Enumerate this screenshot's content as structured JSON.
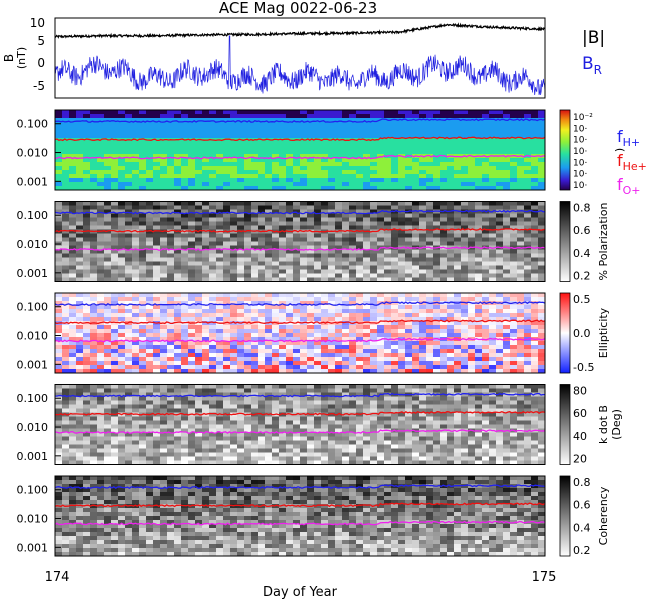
{
  "title": "ACE Mag 0022-06-23",
  "xlabel": "Day of Year",
  "x_ticks": [
    "174",
    "175"
  ],
  "colors": {
    "B": "#000000",
    "BR": "#1f1fe0",
    "fH": "#2222ee",
    "fHe": "#ee1111",
    "fO": "#ee22ee"
  },
  "legend_top": {
    "B": "|B|",
    "BR_main": "B",
    "BR_sub": "R"
  },
  "legend_freq": [
    {
      "main": "f",
      "sub": "H+",
      "color": "#2222ee"
    },
    {
      "main": "f",
      "sub": "He+",
      "color": "#ee1111"
    },
    {
      "main": "f",
      "sub": "O+",
      "color": "#ee22ee"
    }
  ],
  "chart_data": [
    {
      "type": "line",
      "panel": "magnetic field",
      "ylabel": "B (nT)",
      "ylabel_main": "B",
      "ylabel_unit": "(nT)",
      "ylim": [
        -8,
        10
      ],
      "y_ticks": [
        "10",
        "5",
        "0",
        "-5"
      ],
      "x": [
        174.0,
        174.1,
        174.2,
        174.3,
        174.4,
        174.5,
        174.6,
        174.7,
        174.8,
        174.9,
        175.0
      ],
      "series": [
        {
          "name": "|B|",
          "values": [
            5.8,
            6.0,
            6.0,
            6.2,
            6.3,
            6.5,
            6.6,
            6.8,
            8.5,
            7.9,
            7.5
          ]
        },
        {
          "name": "B_R",
          "values": [
            -3,
            -1,
            -4,
            -2,
            -4,
            -3,
            -4,
            -3,
            -1,
            -3,
            -5
          ]
        }
      ]
    },
    {
      "type": "heatmap",
      "panel": "power",
      "y_ticks": [
        "0.100",
        "0.010",
        "0.001"
      ],
      "colorbar_ticks": [
        "10⁻²",
        "10·",
        "10·",
        "10·",
        "10·",
        "10·",
        "10·"
      ],
      "colorbar_label": ")",
      "lines": {
        "fH+": 0.12,
        "fHe+": 0.028,
        "fO+": 0.0065
      }
    },
    {
      "type": "heatmap",
      "panel": "polarization",
      "y_ticks": [
        "0.100",
        "0.010",
        "0.001"
      ],
      "colorbar_ticks": [
        "0.8",
        "0.6",
        "0.4",
        "0.2"
      ],
      "colorbar_label": "% Polarization",
      "lines": {
        "fH+": 0.12,
        "fHe+": 0.028,
        "fO+": 0.0065
      }
    },
    {
      "type": "heatmap",
      "panel": "ellipticity",
      "y_ticks": [
        "0.100",
        "0.010",
        "0.001"
      ],
      "colorbar_ticks": [
        "0.5",
        "0.0",
        "-0.5"
      ],
      "colorbar_label": "Ellipticity",
      "lines": {
        "fH+": 0.12,
        "fHe+": 0.028,
        "fO+": 0.0065
      }
    },
    {
      "type": "heatmap",
      "panel": "k dot B",
      "y_ticks": [
        "0.100",
        "0.010",
        "0.001"
      ],
      "colorbar_ticks": [
        "80",
        "60",
        "40",
        "20"
      ],
      "colorbar_label": "k dot B",
      "colorbar_label2": "(Deg)",
      "lines": {
        "fH+": 0.12,
        "fHe+": 0.028,
        "fO+": 0.0065
      }
    },
    {
      "type": "heatmap",
      "panel": "coherency",
      "y_ticks": [
        "0.100",
        "0.010",
        "0.001"
      ],
      "colorbar_ticks": [
        "0.8",
        "0.6",
        "0.4",
        "0.2"
      ],
      "colorbar_label": "Coherency",
      "lines": {
        "fH+": 0.12,
        "fHe+": 0.028,
        "fO+": 0.0065
      }
    }
  ]
}
